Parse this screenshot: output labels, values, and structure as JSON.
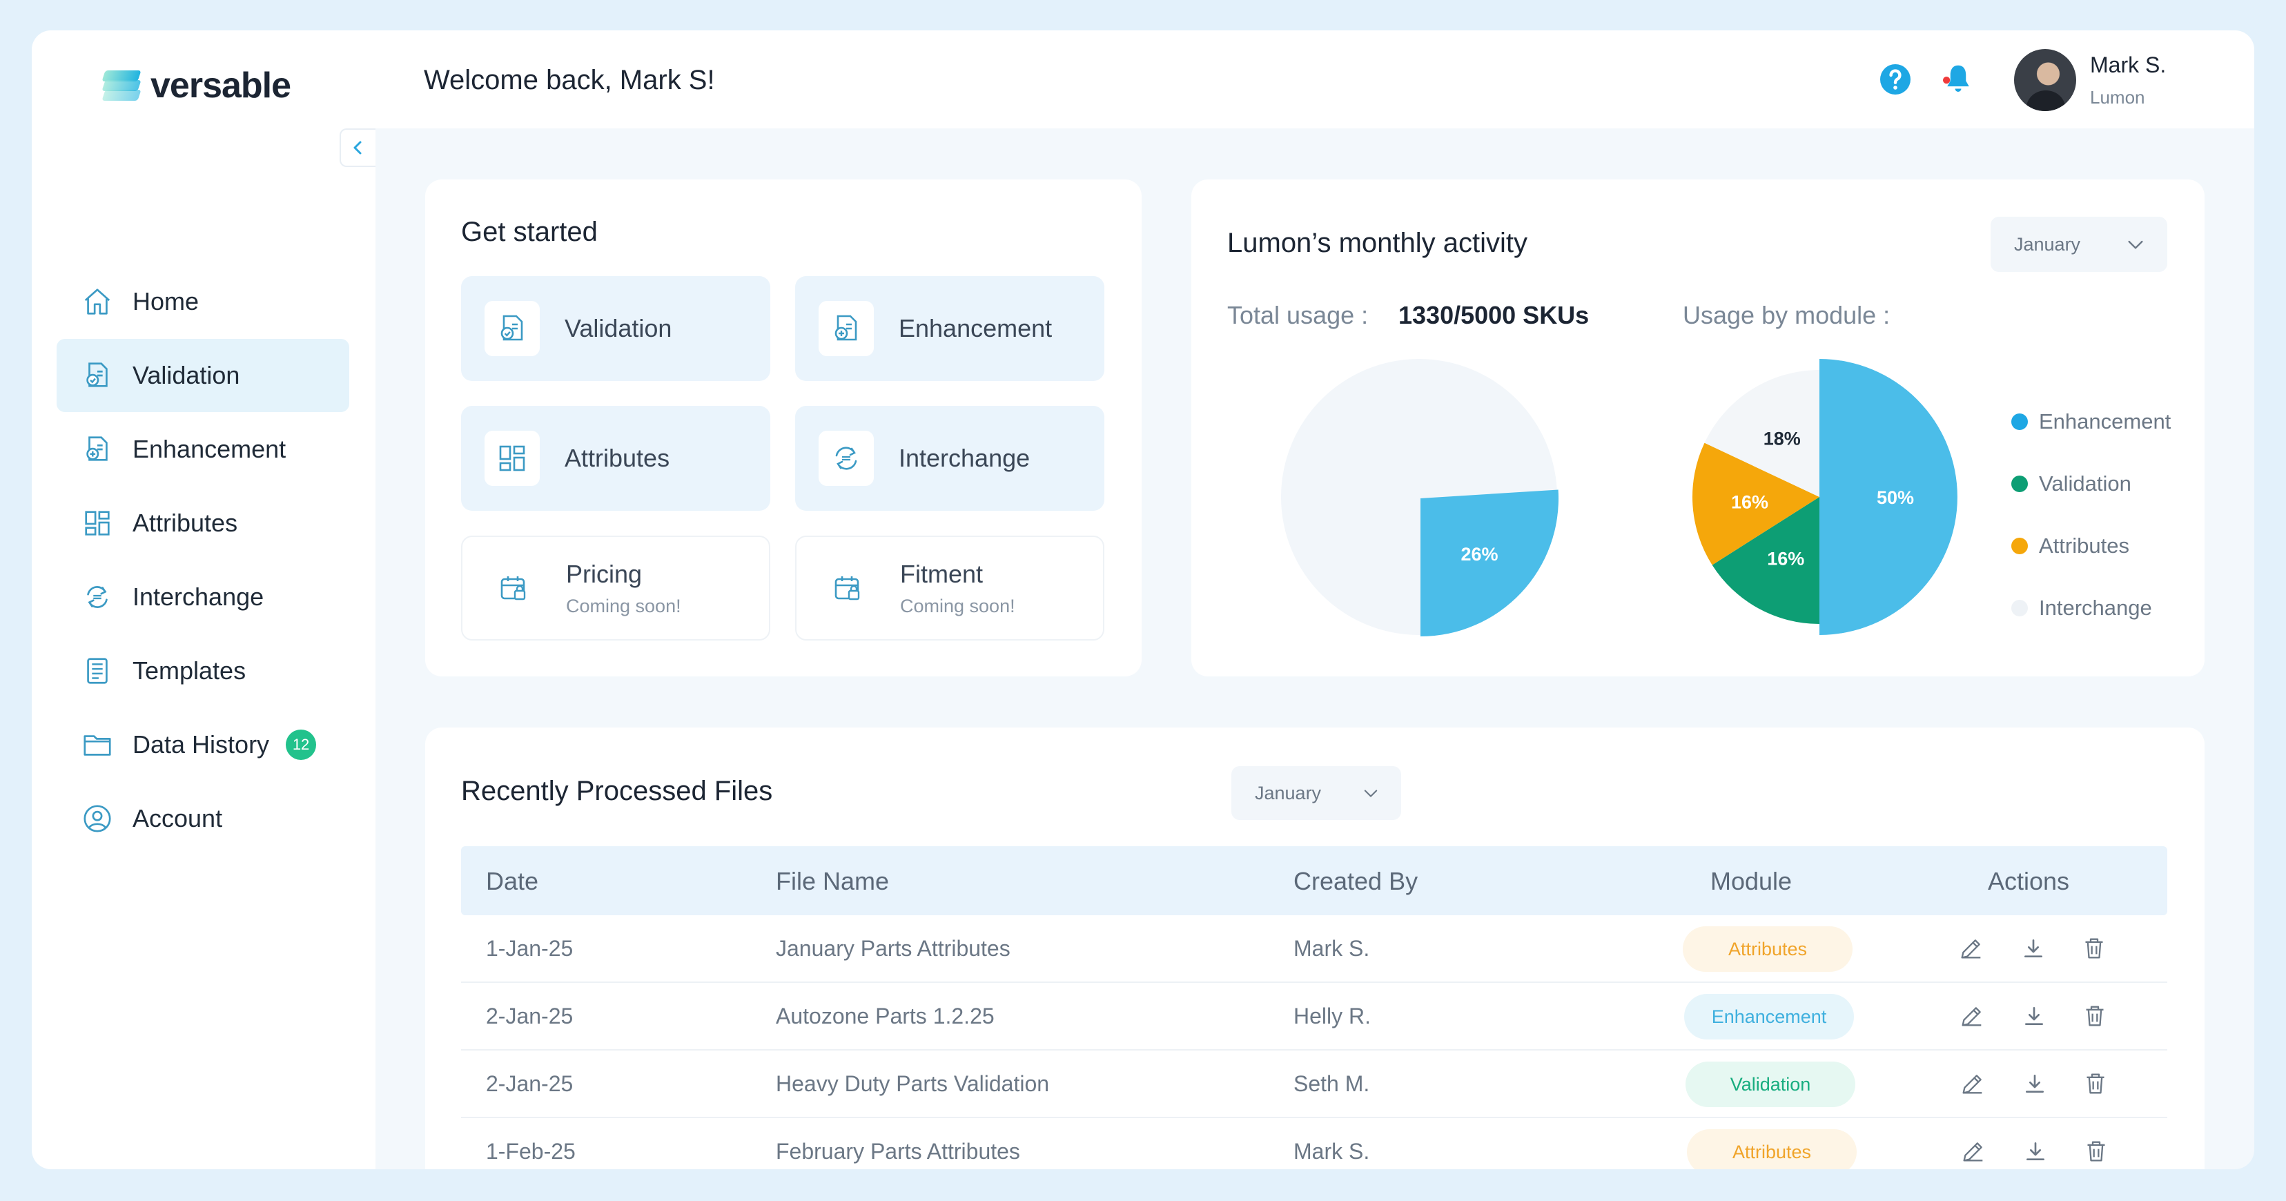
{
  "brand": {
    "name": "versable"
  },
  "header": {
    "welcome": "Welcome back, Mark S!"
  },
  "user": {
    "name": "Mark S.",
    "org": "Lumon"
  },
  "sidebar": {
    "items": [
      {
        "label": "Home",
        "icon": "home-icon"
      },
      {
        "label": "Validation",
        "icon": "validation-icon",
        "active": true
      },
      {
        "label": "Enhancement",
        "icon": "enhancement-icon"
      },
      {
        "label": "Attributes",
        "icon": "attributes-icon"
      },
      {
        "label": "Interchange",
        "icon": "interchange-icon"
      },
      {
        "label": "Templates",
        "icon": "templates-icon"
      },
      {
        "label": "Data History",
        "icon": "folder-icon",
        "badge": "12"
      },
      {
        "label": "Account",
        "icon": "account-icon"
      }
    ]
  },
  "get_started": {
    "title": "Get started",
    "tiles": [
      {
        "label": "Validation",
        "icon": "validation-icon"
      },
      {
        "label": "Enhancement",
        "icon": "enhancement-icon"
      },
      {
        "label": "Attributes",
        "icon": "attributes-icon"
      },
      {
        "label": "Interchange",
        "icon": "interchange-icon"
      },
      {
        "label": "Pricing",
        "sub": "Coming soon!",
        "icon": "pricing-icon"
      },
      {
        "label": "Fitment",
        "sub": "Coming soon!",
        "icon": "fitment-icon"
      }
    ]
  },
  "activity": {
    "title": "Lumon’s monthly activity",
    "month": "January",
    "total_label": "Total usage :",
    "total_value": "1330/5000 SKUs",
    "module_label": "Usage by module :"
  },
  "chart_data": [
    {
      "type": "pie",
      "title": "",
      "values": [
        26
      ],
      "labels": [
        "26%"
      ],
      "remainder_color": "#f2f6fa",
      "colors": [
        "#4bbde9"
      ]
    },
    {
      "type": "pie",
      "title": "",
      "categories": [
        "Enhancement",
        "Validation",
        "Attributes",
        "Interchange"
      ],
      "values": [
        50,
        16,
        16,
        18
      ],
      "labels": [
        "50%",
        "16%",
        "16%",
        "18%"
      ],
      "colors": [
        "#4bbde9",
        "#0d9e74",
        "#f5a70b",
        "#f3f6f9"
      ],
      "legend": "right"
    }
  ],
  "files": {
    "title": "Recently Processed Files",
    "month": "January",
    "columns": [
      "Date",
      "File Name",
      "Created By",
      "Module",
      "Actions"
    ],
    "rows": [
      {
        "date": "1-Jan-25",
        "name": "January Parts Attributes",
        "by": "Mark S.",
        "module": "Attributes"
      },
      {
        "date": "2-Jan-25",
        "name": "Autozone Parts 1.2.25",
        "by": "Helly R.",
        "module": "Enhancement"
      },
      {
        "date": "2-Jan-25",
        "name": "Heavy Duty Parts Validation",
        "by": "Seth M.",
        "module": "Validation"
      },
      {
        "date": "1-Feb-25",
        "name": "February Parts Attributes",
        "by": "Mark S.",
        "module": "Attributes"
      }
    ]
  },
  "module_colors": {
    "Attributes": {
      "bg": "#fef5e6",
      "fg": "#f0a42a"
    },
    "Enhancement": {
      "bg": "#e6f5fb",
      "fg": "#3fb0de"
    },
    "Validation": {
      "bg": "#e6f8f2",
      "fg": "#17ad7f"
    }
  }
}
